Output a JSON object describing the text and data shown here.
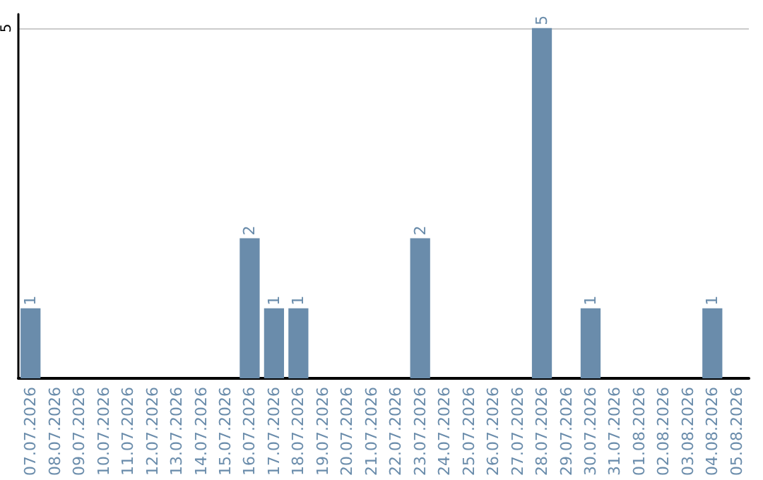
{
  "chart_data": {
    "type": "bar",
    "categories": [
      "07.07.2026",
      "08.07.2026",
      "09.07.2026",
      "10.07.2026",
      "11.07.2026",
      "12.07.2026",
      "13.07.2026",
      "14.07.2026",
      "15.07.2026",
      "16.07.2026",
      "17.07.2026",
      "18.07.2026",
      "19.07.2026",
      "20.07.2026",
      "21.07.2026",
      "22.07.2026",
      "23.07.2026",
      "24.07.2026",
      "25.07.2026",
      "26.07.2026",
      "27.07.2026",
      "28.07.2026",
      "29.07.2026",
      "30.07.2026",
      "31.07.2026",
      "01.08.2026",
      "02.08.2026",
      "03.08.2026",
      "04.08.2026",
      "05.08.2026"
    ],
    "values": [
      1,
      0,
      0,
      0,
      0,
      0,
      0,
      0,
      0,
      2,
      1,
      1,
      0,
      0,
      0,
      0,
      2,
      0,
      0,
      0,
      0,
      5,
      0,
      1,
      0,
      0,
      0,
      0,
      1,
      0
    ],
    "value_labels": [
      "1",
      null,
      null,
      null,
      null,
      null,
      null,
      null,
      null,
      "2",
      "1",
      "1",
      null,
      null,
      null,
      null,
      "2",
      null,
      null,
      null,
      null,
      "5",
      null,
      "1",
      null,
      null,
      null,
      null,
      "1",
      null
    ],
    "color": "#6a8cab",
    "ylim": [
      0,
      5.2
    ],
    "yticks": [
      5
    ],
    "grid": "y"
  }
}
